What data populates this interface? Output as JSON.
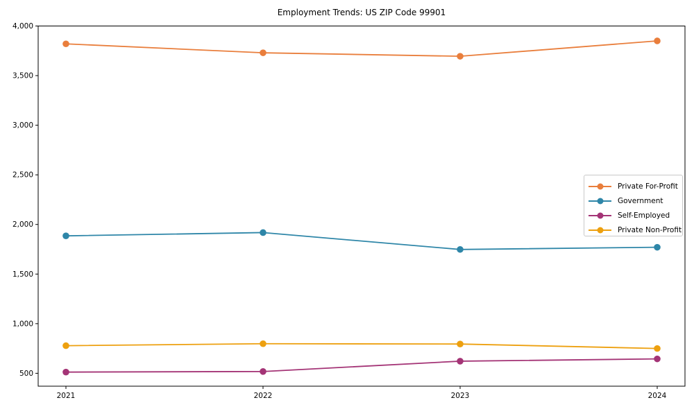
{
  "chart_data": {
    "type": "line",
    "title": "Employment Trends: US ZIP Code 99901",
    "x": [
      2021,
      2022,
      2023,
      2024
    ],
    "x_tick_labels": [
      "2021",
      "2022",
      "2023",
      "2024"
    ],
    "series": [
      {
        "name": "Private For-Profit",
        "color": "#e97e3c",
        "values": [
          3820,
          3730,
          3695,
          3850
        ]
      },
      {
        "name": "Government",
        "color": "#2e86a8",
        "values": [
          1885,
          1918,
          1748,
          1770
        ]
      },
      {
        "name": "Self-Employed",
        "color": "#a43476",
        "values": [
          512,
          518,
          622,
          645
        ]
      },
      {
        "name": "Private Non-Profit",
        "color": "#eda00f",
        "values": [
          778,
          798,
          795,
          750
        ]
      }
    ],
    "yticks": [
      500,
      1000,
      1500,
      2000,
      2500,
      3000,
      3500,
      4000
    ],
    "ytick_labels": [
      "500",
      "1,000",
      "1,500",
      "2,000",
      "2,500",
      "3,000",
      "3,500",
      "4,000"
    ],
    "ylim": [
      370,
      4000
    ],
    "grid": false,
    "marker": "circle",
    "legend_position": "right",
    "frame": "full-box",
    "axis_color": "#000000",
    "background_color": "#ffffff"
  }
}
